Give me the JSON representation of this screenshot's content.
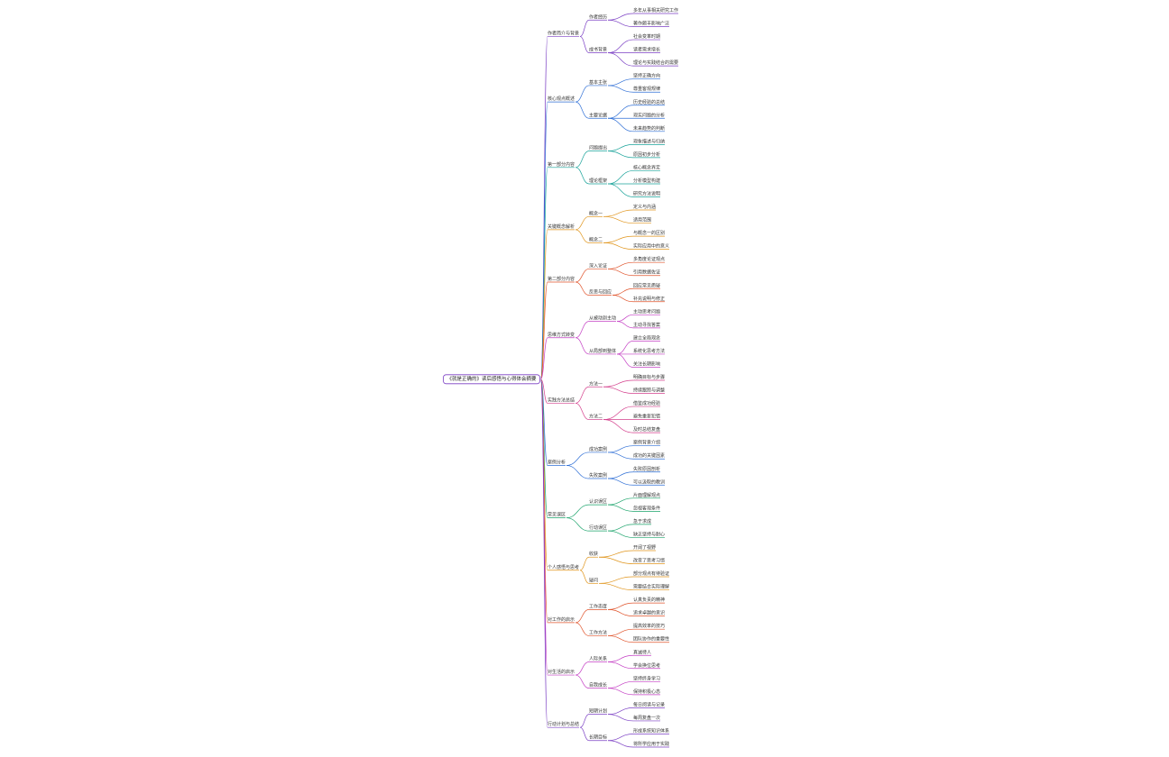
{
  "mindmap": {
    "root": {
      "text": "《就是正确的》读后感悟与心得体会摘要",
      "children": [
        {
          "text": "作者简介与背景",
          "color": "#7b3fc4",
          "children": [
            {
              "text": "作者经历",
              "children": [
                {
                  "text": "多年从事相关研究工作"
                },
                {
                  "text": "著作颇丰影响广泛"
                }
              ]
            },
            {
              "text": "成书背景",
              "children": [
                {
                  "text": "社会变革时期"
                },
                {
                  "text": "读者需求增长"
                },
                {
                  "text": "理论与实践结合的需要"
                }
              ]
            }
          ]
        },
        {
          "text": "核心观点概述",
          "color": "#2f6fd6",
          "children": [
            {
              "text": "基本主张",
              "children": [
                {
                  "text": "坚持正确方向"
                },
                {
                  "text": "尊重客观规律"
                }
              ]
            },
            {
              "text": "主要论据",
              "children": [
                {
                  "text": "历史经验的总结"
                },
                {
                  "text": "现实问题的分析"
                },
                {
                  "text": "未来趋势的判断"
                }
              ]
            }
          ]
        },
        {
          "text": "第一部分内容",
          "color": "#1aa39a",
          "children": [
            {
              "text": "问题提出",
              "children": [
                {
                  "text": "现象描述与归纳"
                },
                {
                  "text": "原因初步分析"
                }
              ]
            },
            {
              "text": "理论框架",
              "children": [
                {
                  "text": "核心概念界定"
                },
                {
                  "text": "分析模型构建"
                },
                {
                  "text": "研究方法说明"
                }
              ]
            }
          ]
        },
        {
          "text": "关键概念解析",
          "color": "#e0951c",
          "children": [
            {
              "text": "概念一",
              "children": [
                {
                  "text": "定义与内涵"
                },
                {
                  "text": "适用范围"
                }
              ]
            },
            {
              "text": "概念二",
              "children": [
                {
                  "text": "与概念一的区别"
                },
                {
                  "text": "实际应用中的意义"
                }
              ]
            }
          ]
        },
        {
          "text": "第二部分内容",
          "color": "#e0542c",
          "children": [
            {
              "text": "深入论证",
              "children": [
                {
                  "text": "多角度论证观点"
                },
                {
                  "text": "引用数据佐证"
                }
              ]
            },
            {
              "text": "反思与回应",
              "children": [
                {
                  "text": "回应常见质疑"
                },
                {
                  "text": "补充说明与修正"
                }
              ]
            }
          ]
        },
        {
          "text": "思维方式转变",
          "color": "#c43fc4",
          "children": [
            {
              "text": "从被动到主动",
              "children": [
                {
                  "text": "主动思考问题"
                },
                {
                  "text": "主动寻找答案"
                }
              ]
            },
            {
              "text": "从局部到整体",
              "children": [
                {
                  "text": "建立全局观念"
                },
                {
                  "text": "系统化思考方法"
                },
                {
                  "text": "关注长期影响"
                }
              ]
            }
          ]
        },
        {
          "text": "实践方法总结",
          "color": "#d43f8c",
          "children": [
            {
              "text": "方法一",
              "children": [
                {
                  "text": "明确目标与步骤"
                },
                {
                  "text": "持续跟踪与调整"
                }
              ]
            },
            {
              "text": "方法二",
              "children": [
                {
                  "text": "借鉴成功经验"
                },
                {
                  "text": "避免重复犯错"
                },
                {
                  "text": "及时总结复盘"
                }
              ]
            }
          ]
        },
        {
          "text": "案例分析",
          "color": "#2f6fd6",
          "children": [
            {
              "text": "成功案例",
              "children": [
                {
                  "text": "案例背景介绍"
                },
                {
                  "text": "成功的关键因素"
                }
              ]
            },
            {
              "text": "失败案例",
              "children": [
                {
                  "text": "失败原因剖析"
                },
                {
                  "text": "可以汲取的教训"
                }
              ]
            }
          ]
        },
        {
          "text": "常见误区",
          "color": "#1aa36a",
          "children": [
            {
              "text": "认识误区",
              "children": [
                {
                  "text": "片面理解观点"
                },
                {
                  "text": "忽视客观条件"
                }
              ]
            },
            {
              "text": "行动误区",
              "children": [
                {
                  "text": "急于求成"
                },
                {
                  "text": "缺乏坚持与耐心"
                }
              ]
            }
          ]
        },
        {
          "text": "个人感悟与思考",
          "color": "#e0951c",
          "children": [
            {
              "text": "收获",
              "children": [
                {
                  "text": "开阔了视野"
                },
                {
                  "text": "改变了思考习惯"
                }
              ]
            },
            {
              "text": "疑问",
              "children": [
                {
                  "text": "部分观点有待验证"
                },
                {
                  "text": "需要结合实际理解"
                }
              ]
            }
          ]
        },
        {
          "text": "对工作的启示",
          "color": "#e0542c",
          "children": [
            {
              "text": "工作态度",
              "children": [
                {
                  "text": "认真负责的精神"
                },
                {
                  "text": "追求卓越的意识"
                }
              ]
            },
            {
              "text": "工作方法",
              "children": [
                {
                  "text": "提高效率的技巧"
                },
                {
                  "text": "团队协作的重要性"
                }
              ]
            }
          ]
        },
        {
          "text": "对生活的启示",
          "color": "#c43fc4",
          "children": [
            {
              "text": "人际关系",
              "children": [
                {
                  "text": "真诚待人"
                },
                {
                  "text": "学会换位思考"
                }
              ]
            },
            {
              "text": "自我成长",
              "children": [
                {
                  "text": "坚持终身学习"
                },
                {
                  "text": "保持积极心态"
                }
              ]
            }
          ]
        },
        {
          "text": "行动计划与总结",
          "color": "#7b3fc4",
          "children": [
            {
              "text": "短期计划",
              "children": [
                {
                  "text": "每日阅读与记录"
                },
                {
                  "text": "每周复盘一次"
                }
              ]
            },
            {
              "text": "长期目标",
              "children": [
                {
                  "text": "形成系统知识体系"
                },
                {
                  "text": "将所学应用于实践"
                }
              ]
            }
          ]
        }
      ]
    }
  }
}
